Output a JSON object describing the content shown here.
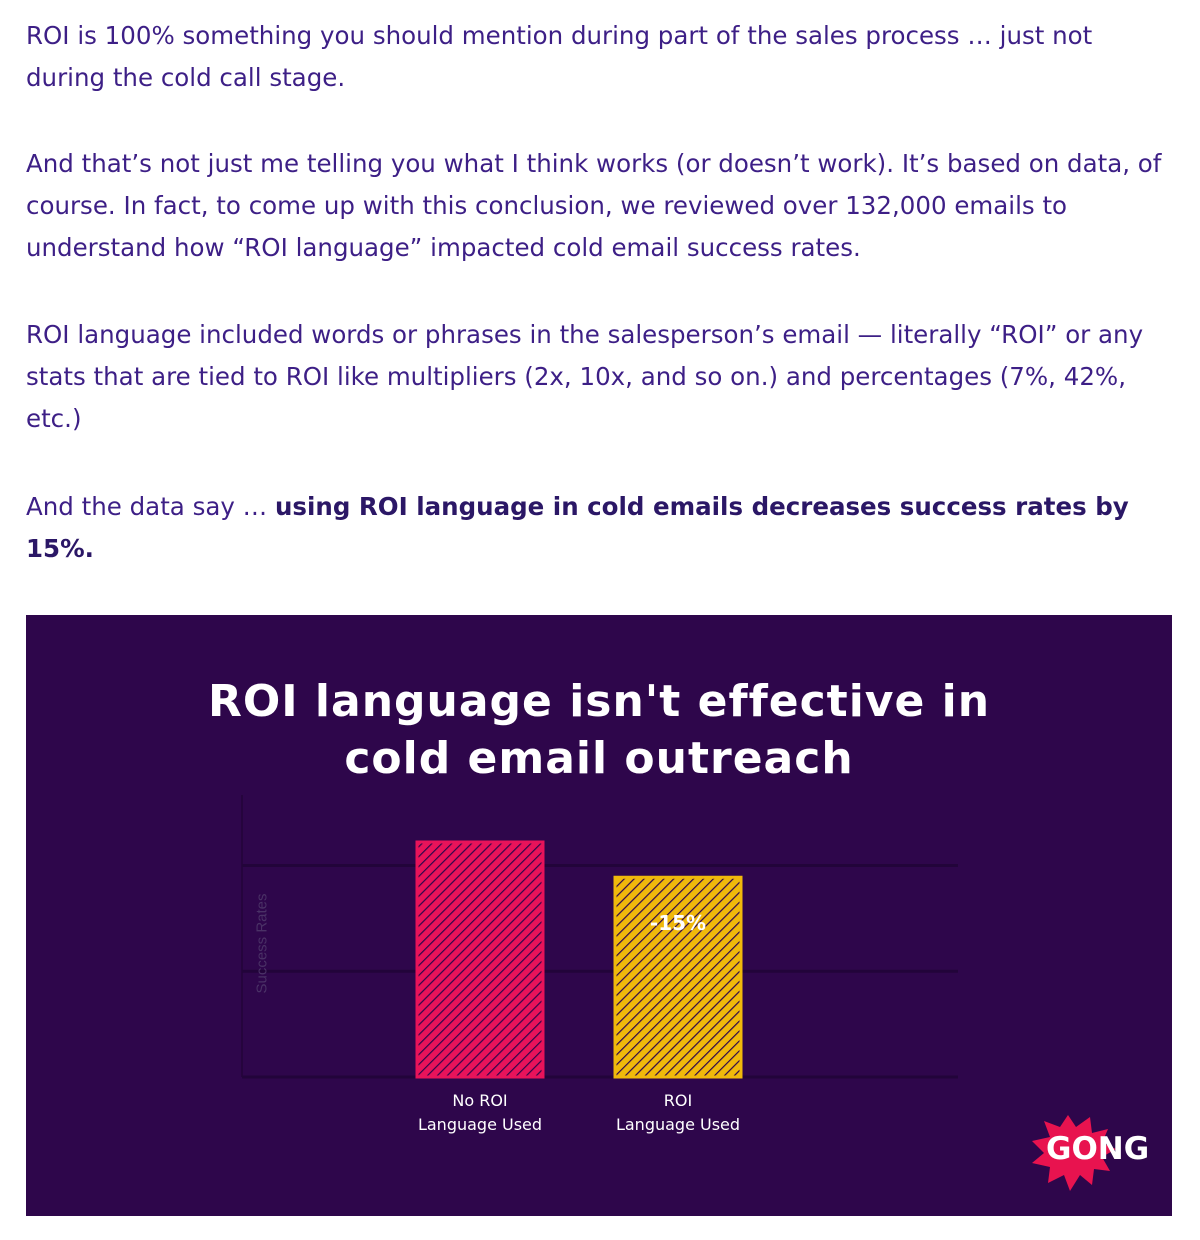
{
  "article": {
    "p1": "ROI is 100% something you should mention during part of the sales process … just not during the cold call stage.",
    "p2": "And that’s not just me telling you what I think works (or doesn’t work). It’s based on data, of course. In fact, to come up with this conclusion, we reviewed over 132,000 emails to understand how “ROI language” impacted cold email success rates.",
    "p3": "ROI language included words or phrases in the salesperson’s email — literally “ROI” or any stats that are tied to ROI like multipliers (2x, 10x, and so on.) and percentages (7%, 42%, etc.)",
    "p4_lead": "And the data say … ",
    "p4_bold": "using ROI language in cold emails decreases success rates by 15%."
  },
  "chart_data": {
    "type": "bar",
    "title_lines": [
      "ROI language isn't effective in",
      "cold email outreach"
    ],
    "ylabel": "Success Rates",
    "categories": [
      [
        "No ROI",
        "Language Used"
      ],
      [
        "ROI",
        "Language Used"
      ]
    ],
    "values": [
      100,
      85
    ],
    "annotations": [
      "",
      "-15%"
    ],
    "ylim": [
      0,
      120
    ],
    "grid": true,
    "colors": {
      "background": "#2e064b",
      "bar_no_roi": "#e8135a",
      "bar_roi": "#f0b90b",
      "logo_burst": "#e8134f"
    },
    "logo_text": "GONG"
  }
}
